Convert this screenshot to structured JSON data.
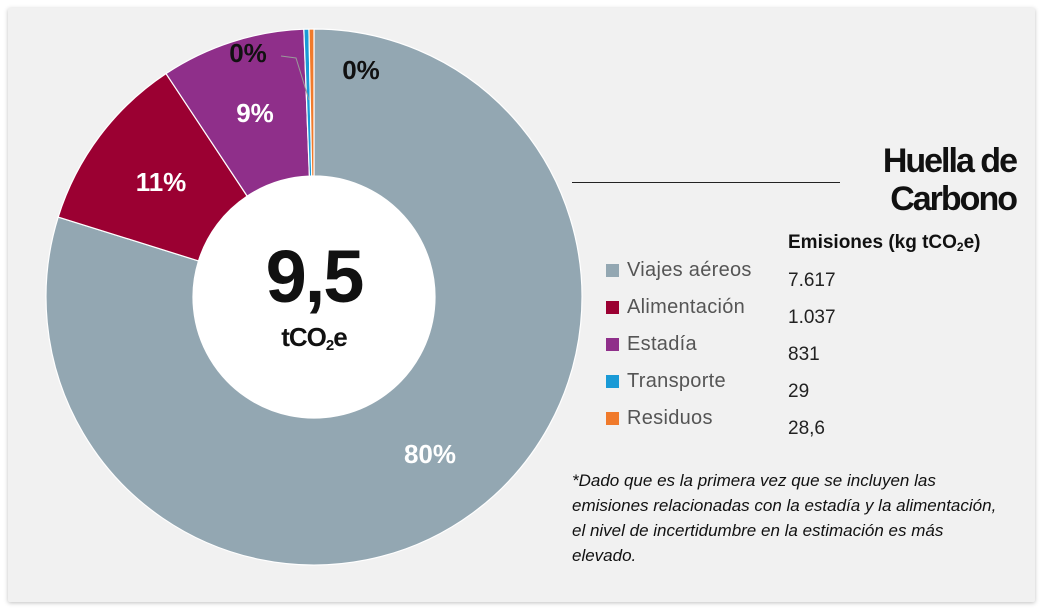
{
  "chart_data": {
    "type": "pie",
    "donut": true,
    "center_value": "9,5",
    "center_unit_prefix": "tCO",
    "center_unit_sub": "2",
    "center_unit_suffix": "e",
    "title_line1": "Huella de",
    "title_line2": "Carbono",
    "value_header_prefix": "Emisiones (kg tCO",
    "value_header_sub": "2",
    "value_header_suffix": "e)",
    "slices": [
      {
        "label": "Viajes aéreos",
        "value": 7617,
        "value_text": "7.617",
        "pct_label": "80%",
        "color": "#93a7b2"
      },
      {
        "label": "Alimentación",
        "value": 1037,
        "value_text": "1.037",
        "pct_label": "11%",
        "color": "#9b0032"
      },
      {
        "label": "Estadía",
        "value": 831,
        "value_text": "831",
        "pct_label": "9%",
        "color": "#8f2f8a"
      },
      {
        "label": "Transporte",
        "value": 29,
        "value_text": "29",
        "pct_label": "0%",
        "color": "#1a9ad6"
      },
      {
        "label": "Residuos",
        "value": 28.6,
        "value_text": "28,6",
        "pct_label": "0%",
        "color": "#f07a2b"
      }
    ],
    "note": "*Dado que es la primera vez que se incluyen las emisiones relacionadas con la estadía y la alimentación, el nivel de incertidumbre en la estimación es más elevado."
  }
}
